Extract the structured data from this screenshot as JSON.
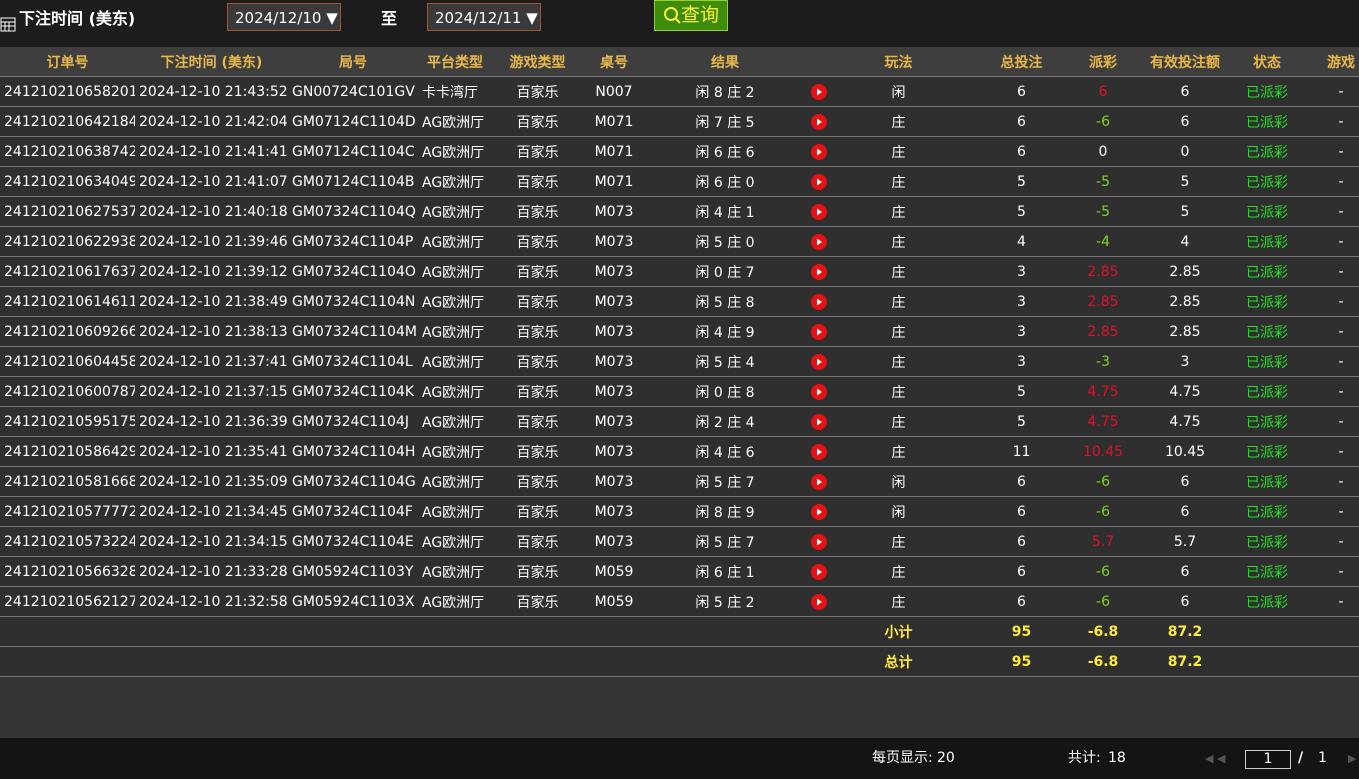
{
  "filter": {
    "label": "下注时间 (美东)",
    "from": "2024/12/10",
    "sep": "至",
    "to": "2024/12/11",
    "button": "查询"
  },
  "table": {
    "headers": [
      "订单号",
      "下注时间 (美东)",
      "局号",
      "平台类型",
      "游戏类型",
      "桌号",
      "结果",
      "玩法",
      "总投注",
      "派彩",
      "有效投注额",
      "状态",
      "游戏"
    ],
    "rows": [
      [
        "241210210658201",
        "2024-12-10 21:43:52",
        "GN00724C101GV",
        "卡卡湾厅",
        "百家乐",
        "N007",
        "闲 8 庄 2",
        "闲",
        6,
        6,
        6,
        "已派彩",
        "-"
      ],
      [
        "241210210642184",
        "2024-12-10 21:42:04",
        "GM07124C1104D",
        "AG欧洲厅",
        "百家乐",
        "M071",
        "闲 7 庄 5",
        "庄",
        6,
        -6,
        6,
        "已派彩",
        "-"
      ],
      [
        "241210210638742",
        "2024-12-10 21:41:41",
        "GM07124C1104C",
        "AG欧洲厅",
        "百家乐",
        "M071",
        "闲 6 庄 6",
        "庄",
        6,
        0,
        0,
        "已派彩",
        "-"
      ],
      [
        "241210210634049",
        "2024-12-10 21:41:07",
        "GM07124C1104B",
        "AG欧洲厅",
        "百家乐",
        "M071",
        "闲 6 庄 0",
        "庄",
        5,
        -5,
        5,
        "已派彩",
        "-"
      ],
      [
        "241210210627537",
        "2024-12-10 21:40:18",
        "GM07324C1104Q",
        "AG欧洲厅",
        "百家乐",
        "M073",
        "闲 4 庄 1",
        "庄",
        5,
        -5,
        5,
        "已派彩",
        "-"
      ],
      [
        "241210210622938",
        "2024-12-10 21:39:46",
        "GM07324C1104P",
        "AG欧洲厅",
        "百家乐",
        "M073",
        "闲 5 庄 0",
        "庄",
        4,
        -4,
        4,
        "已派彩",
        "-"
      ],
      [
        "241210210617637",
        "2024-12-10 21:39:12",
        "GM07324C1104O",
        "AG欧洲厅",
        "百家乐",
        "M073",
        "闲 0 庄 7",
        "庄",
        3,
        2.85,
        2.85,
        "已派彩",
        "-"
      ],
      [
        "241210210614611",
        "2024-12-10 21:38:49",
        "GM07324C1104N",
        "AG欧洲厅",
        "百家乐",
        "M073",
        "闲 5 庄 8",
        "庄",
        3,
        2.85,
        2.85,
        "已派彩",
        "-"
      ],
      [
        "241210210609266",
        "2024-12-10 21:38:13",
        "GM07324C1104M",
        "AG欧洲厅",
        "百家乐",
        "M073",
        "闲 4 庄 9",
        "庄",
        3,
        2.85,
        2.85,
        "已派彩",
        "-"
      ],
      [
        "241210210604458",
        "2024-12-10 21:37:41",
        "GM07324C1104L",
        "AG欧洲厅",
        "百家乐",
        "M073",
        "闲 5 庄 4",
        "庄",
        3,
        -3,
        3,
        "已派彩",
        "-"
      ],
      [
        "241210210600787",
        "2024-12-10 21:37:15",
        "GM07324C1104K",
        "AG欧洲厅",
        "百家乐",
        "M073",
        "闲 0 庄 8",
        "庄",
        5,
        4.75,
        4.75,
        "已派彩",
        "-"
      ],
      [
        "241210210595175",
        "2024-12-10 21:36:39",
        "GM07324C1104J",
        "AG欧洲厅",
        "百家乐",
        "M073",
        "闲 2 庄 4",
        "庄",
        5,
        4.75,
        4.75,
        "已派彩",
        "-"
      ],
      [
        "241210210586429",
        "2024-12-10 21:35:41",
        "GM07324C1104H",
        "AG欧洲厅",
        "百家乐",
        "M073",
        "闲 4 庄 6",
        "庄",
        11,
        10.45,
        10.45,
        "已派彩",
        "-"
      ],
      [
        "241210210581668",
        "2024-12-10 21:35:09",
        "GM07324C1104G",
        "AG欧洲厅",
        "百家乐",
        "M073",
        "闲 5 庄 7",
        "闲",
        6,
        -6,
        6,
        "已派彩",
        "-"
      ],
      [
        "241210210577772",
        "2024-12-10 21:34:45",
        "GM07324C1104F",
        "AG欧洲厅",
        "百家乐",
        "M073",
        "闲 8 庄 9",
        "闲",
        6,
        -6,
        6,
        "已派彩",
        "-"
      ],
      [
        "241210210573224",
        "2024-12-10 21:34:15",
        "GM07324C1104E",
        "AG欧洲厅",
        "百家乐",
        "M073",
        "闲 5 庄 7",
        "庄",
        6,
        5.7,
        5.7,
        "已派彩",
        "-"
      ],
      [
        "241210210566328",
        "2024-12-10 21:33:28",
        "GM05924C1103Y",
        "AG欧洲厅",
        "百家乐",
        "M059",
        "闲 6 庄 1",
        "庄",
        6,
        -6,
        6,
        "已派彩",
        "-"
      ],
      [
        "241210210562127",
        "2024-12-10 21:32:58",
        "GM05924C1103X",
        "AG欧洲厅",
        "百家乐",
        "M059",
        "闲 5 庄 2",
        "庄",
        6,
        -6,
        6,
        "已派彩",
        "-"
      ]
    ],
    "summary": [
      {
        "label": "小计",
        "total": 95,
        "payout": -6.8,
        "valid": 87.2
      },
      {
        "label": "总计",
        "total": 95,
        "payout": -6.8,
        "valid": 87.2
      }
    ]
  },
  "footer": {
    "per_page_label": "每页显示:",
    "per_page": 20,
    "total_label": "共计:",
    "total": 18,
    "page": 1,
    "page_sep": "/",
    "pages": 1
  }
}
